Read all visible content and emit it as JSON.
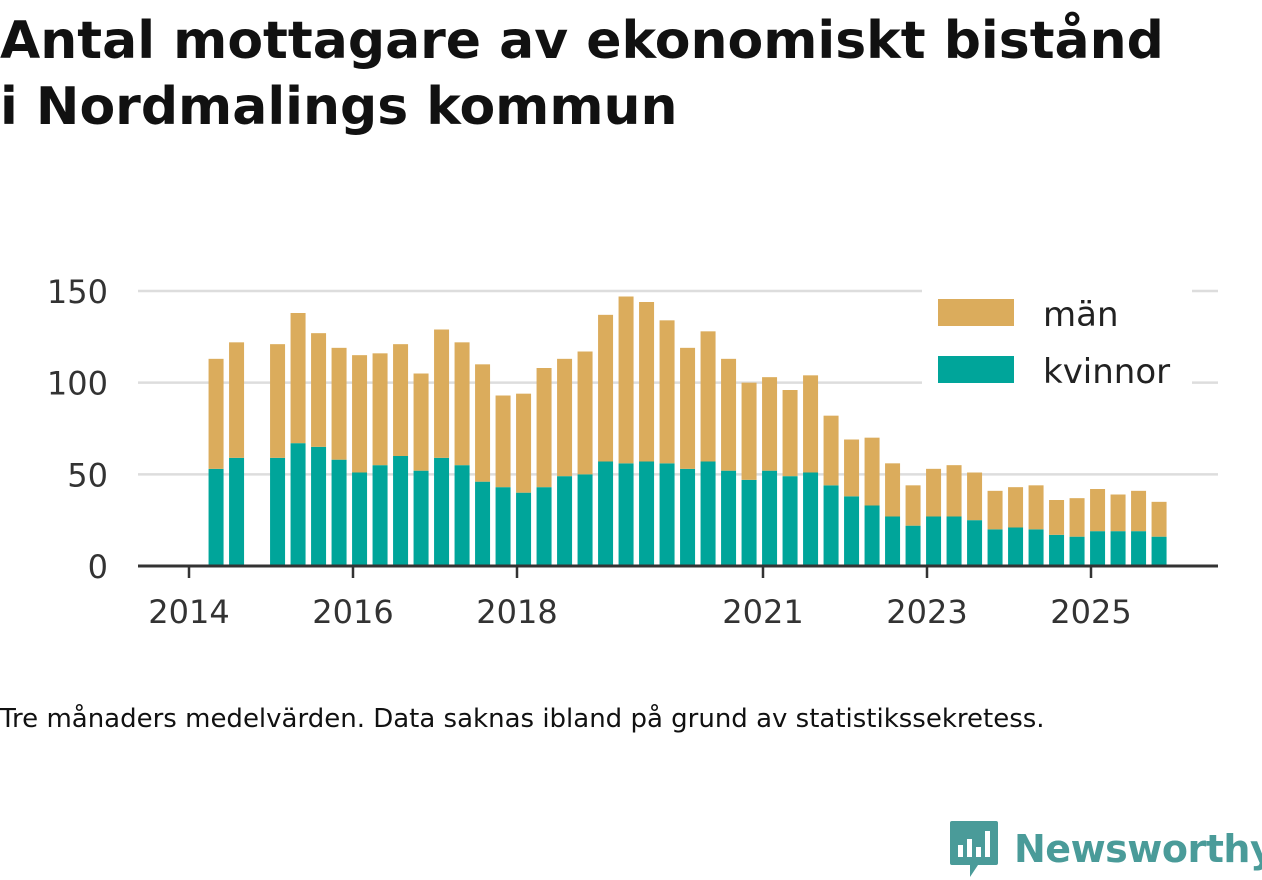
{
  "title": {
    "line1": "Antal mottagare av ekonomiskt bistånd",
    "line2": "i Nordmalings kommun"
  },
  "caption": "Tre månaders medelvärden. Data saknas ibland på grund av statistikssekretess.",
  "brand": {
    "name": "Newsworthy",
    "icon": "newsworthy-logo-icon",
    "color": "#4a9b99"
  },
  "colors": {
    "man": "#dbac5c",
    "kvinnor": "#00a59a",
    "grid": "#dddddd",
    "axis": "#333333",
    "text": "#333333"
  },
  "chart_data": {
    "type": "bar",
    "stacked": true,
    "title": "Antal mottagare av ekonomiskt bistånd i Nordmalings kommun",
    "xlabel": "",
    "ylabel": "",
    "ylim": [
      0,
      150
    ],
    "yticks": [
      0,
      50,
      100,
      150
    ],
    "xticks": [
      {
        "label": "2014",
        "x": 2014.0
      },
      {
        "label": "2016",
        "x": 2016.0
      },
      {
        "label": "2018",
        "x": 2018.0
      },
      {
        "label": "2021",
        "x": 2021.0
      },
      {
        "label": "2023",
        "x": 2023.0
      },
      {
        "label": "2025",
        "x": 2025.0
      }
    ],
    "grid": true,
    "legend_position": "top-right",
    "x": [
      2014.33,
      2014.58,
      2015.08,
      2015.33,
      2015.58,
      2015.83,
      2016.08,
      2016.33,
      2016.58,
      2016.83,
      2017.08,
      2017.33,
      2017.58,
      2017.83,
      2018.08,
      2018.33,
      2018.58,
      2018.83,
      2019.08,
      2019.33,
      2019.58,
      2019.83,
      2020.08,
      2020.33,
      2020.58,
      2020.83,
      2021.08,
      2021.33,
      2021.58,
      2021.83,
      2022.08,
      2022.33,
      2022.58,
      2022.83,
      2023.08,
      2023.33,
      2023.58,
      2023.83,
      2024.08,
      2024.33,
      2024.58,
      2024.83,
      2025.08,
      2025.33,
      2025.58,
      2025.83
    ],
    "series": [
      {
        "name": "kvinnor",
        "color": "#00a59a",
        "values": [
          53,
          59,
          59,
          67,
          65,
          58,
          51,
          55,
          60,
          52,
          59,
          55,
          46,
          43,
          40,
          43,
          49,
          50,
          57,
          56,
          57,
          56,
          53,
          57,
          52,
          47,
          52,
          49,
          51,
          44,
          38,
          33,
          27,
          22,
          27,
          27,
          25,
          20,
          21,
          20,
          17,
          16,
          19,
          19,
          19,
          16
        ]
      },
      {
        "name": "män",
        "color": "#dbac5c",
        "values": [
          60,
          63,
          62,
          71,
          62,
          61,
          64,
          61,
          61,
          53,
          70,
          67,
          64,
          50,
          54,
          65,
          64,
          67,
          80,
          91,
          87,
          78,
          66,
          71,
          61,
          53,
          51,
          47,
          53,
          38,
          31,
          37,
          29,
          22,
          26,
          28,
          26,
          21,
          22,
          24,
          19,
          21,
          23,
          20,
          22,
          19
        ]
      }
    ]
  }
}
